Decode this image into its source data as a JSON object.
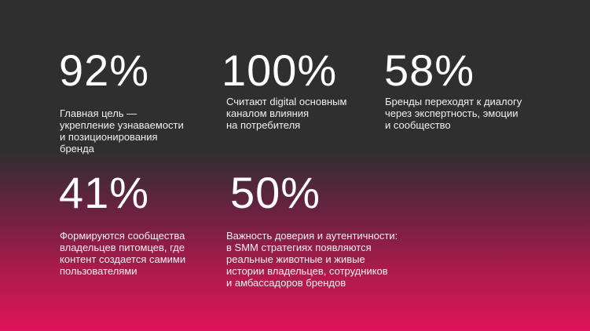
{
  "stats": [
    {
      "value": "92%",
      "text": "Главная цель —\nукрепление узнаваемости\nи позиционирования\nбренда"
    },
    {
      "value": "100%",
      "text": "Считают digital основным\nканалом влияния\nна потребителя"
    },
    {
      "value": "58%",
      "text": "Бренды переходят к диалогу\nчерез экспертность, эмоции\nи сообщество"
    },
    {
      "value": "41%",
      "text": "Формируются сообщества\nвладельцев питомцев, где\nконтент создается самими\nпользователями"
    },
    {
      "value": "50%",
      "text": "Важность доверия и аутентичности:\nв SMM стратегиях появляются\nреальные животные и живые\nистории владельцев, сотрудников\nи амбассадоров брендов"
    }
  ],
  "colors": {
    "top": "#2f2f2f",
    "bottom": "#e0145a"
  }
}
